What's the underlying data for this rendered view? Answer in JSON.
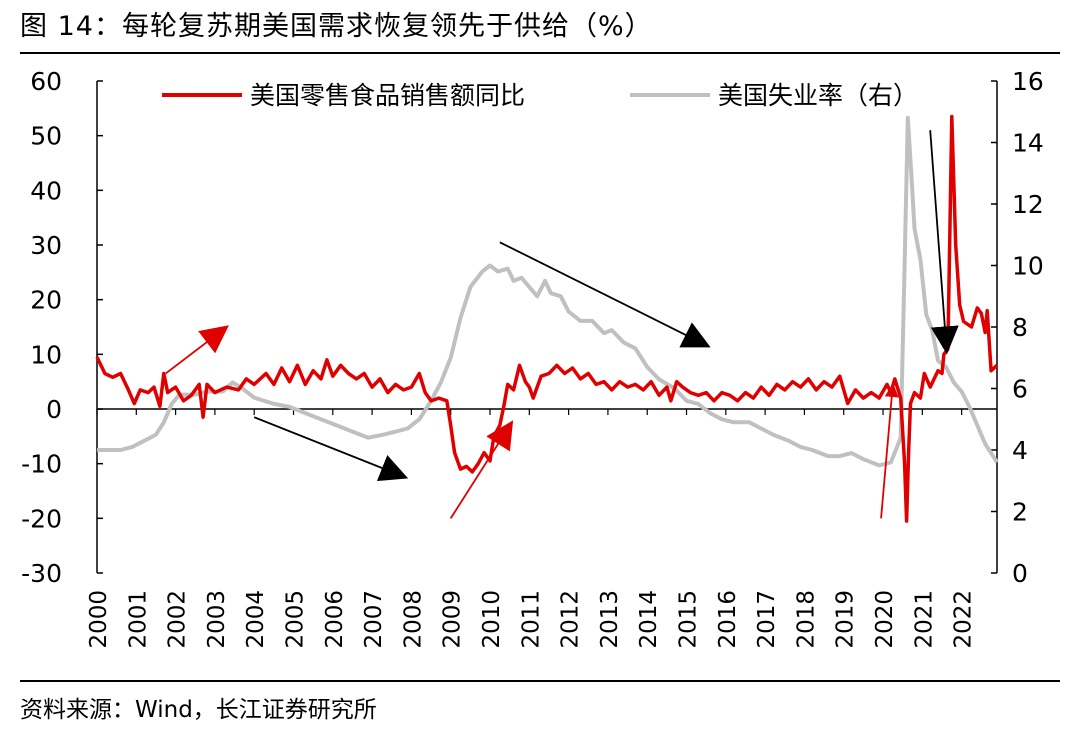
{
  "figure": {
    "title": "图 14：每轮复苏期美国需求恢复领先于供给（%）",
    "source": "资料来源：Wind，长江证券研究所"
  },
  "colors": {
    "retail": "#e00000",
    "unemployment": "#c0c0c0",
    "arrow_black": "#000000",
    "arrow_red": "#e00000"
  },
  "chart_data": {
    "type": "line",
    "title": "每轮复苏期美国需求恢复领先于供给（%）",
    "xlabel": "",
    "ylabel": "",
    "ylabel_right": "",
    "x_ticks": [
      "2000",
      "2001",
      "2002",
      "2003",
      "2004",
      "2005",
      "2006",
      "2007",
      "2008",
      "2009",
      "2010",
      "2011",
      "2012",
      "2013",
      "2014",
      "2015",
      "2016",
      "2017",
      "2018",
      "2019",
      "2020",
      "2021",
      "2022"
    ],
    "y_left": {
      "ticks": [
        "60",
        "50",
        "40",
        "30",
        "20",
        "10",
        "0",
        "-10",
        "-20",
        "-30"
      ],
      "min": -30,
      "max": 60
    },
    "y_right": {
      "ticks": [
        "16",
        "14",
        "12",
        "10",
        "8",
        "6",
        "4",
        "2",
        "0"
      ],
      "min": 0,
      "max": 16
    },
    "legend": [
      "美国零售食品销售额同比",
      "美国失业率（右）"
    ],
    "series": [
      {
        "name": "美国零售食品销售额同比",
        "axis": "left",
        "points": [
          [
            2000.0,
            9.5
          ],
          [
            2000.2,
            6.5
          ],
          [
            2000.4,
            5.8
          ],
          [
            2000.6,
            6.5
          ],
          [
            2000.8,
            3.5
          ],
          [
            2000.95,
            1.0
          ],
          [
            2001.1,
            3.5
          ],
          [
            2001.3,
            3.0
          ],
          [
            2001.45,
            4.0
          ],
          [
            2001.6,
            0.5
          ],
          [
            2001.7,
            6.5
          ],
          [
            2001.8,
            3.0
          ],
          [
            2002.0,
            4.0
          ],
          [
            2002.2,
            1.5
          ],
          [
            2002.4,
            2.5
          ],
          [
            2002.6,
            4.5
          ],
          [
            2002.7,
            -1.5
          ],
          [
            2002.8,
            4.5
          ],
          [
            2003.0,
            3.0
          ],
          [
            2003.3,
            4.0
          ],
          [
            2003.6,
            3.5
          ],
          [
            2003.8,
            5.5
          ],
          [
            2004.0,
            4.5
          ],
          [
            2004.3,
            6.5
          ],
          [
            2004.5,
            4.5
          ],
          [
            2004.7,
            7.5
          ],
          [
            2004.9,
            5.0
          ],
          [
            2005.1,
            8.0
          ],
          [
            2005.3,
            4.5
          ],
          [
            2005.5,
            7.0
          ],
          [
            2005.7,
            5.5
          ],
          [
            2005.85,
            9.0
          ],
          [
            2006.0,
            6.0
          ],
          [
            2006.2,
            8.0
          ],
          [
            2006.4,
            6.5
          ],
          [
            2006.6,
            5.5
          ],
          [
            2006.8,
            6.5
          ],
          [
            2007.0,
            4.0
          ],
          [
            2007.2,
            5.5
          ],
          [
            2007.4,
            3.0
          ],
          [
            2007.6,
            4.5
          ],
          [
            2007.8,
            3.5
          ],
          [
            2008.0,
            4.0
          ],
          [
            2008.2,
            6.5
          ],
          [
            2008.35,
            3.0
          ],
          [
            2008.5,
            1.5
          ],
          [
            2008.7,
            2.0
          ],
          [
            2008.9,
            1.5
          ],
          [
            2009.0,
            -3.0
          ],
          [
            2009.1,
            -8.0
          ],
          [
            2009.25,
            -11.0
          ],
          [
            2009.4,
            -10.5
          ],
          [
            2009.55,
            -11.5
          ],
          [
            2009.7,
            -10.0
          ],
          [
            2009.85,
            -8.0
          ],
          [
            2010.0,
            -9.5
          ],
          [
            2010.1,
            -5.0
          ],
          [
            2010.25,
            -3.0
          ],
          [
            2010.35,
            0.5
          ],
          [
            2010.45,
            4.5
          ],
          [
            2010.6,
            3.5
          ],
          [
            2010.75,
            8.0
          ],
          [
            2010.9,
            5.0
          ],
          [
            2011.0,
            4.0
          ],
          [
            2011.1,
            2.0
          ],
          [
            2011.3,
            6.0
          ],
          [
            2011.5,
            6.5
          ],
          [
            2011.7,
            8.0
          ],
          [
            2011.9,
            6.5
          ],
          [
            2012.1,
            7.5
          ],
          [
            2012.3,
            5.5
          ],
          [
            2012.5,
            6.5
          ],
          [
            2012.7,
            4.5
          ],
          [
            2012.9,
            5.0
          ],
          [
            2013.1,
            3.5
          ],
          [
            2013.3,
            5.0
          ],
          [
            2013.5,
            4.0
          ],
          [
            2013.7,
            4.5
          ],
          [
            2013.9,
            3.5
          ],
          [
            2014.1,
            5.0
          ],
          [
            2014.3,
            2.5
          ],
          [
            2014.5,
            4.0
          ],
          [
            2014.6,
            1.5
          ],
          [
            2014.75,
            5.0
          ],
          [
            2014.9,
            4.0
          ],
          [
            2015.1,
            3.0
          ],
          [
            2015.3,
            2.5
          ],
          [
            2015.5,
            3.0
          ],
          [
            2015.7,
            1.5
          ],
          [
            2015.9,
            3.0
          ],
          [
            2016.1,
            2.5
          ],
          [
            2016.3,
            1.5
          ],
          [
            2016.5,
            3.0
          ],
          [
            2016.7,
            2.0
          ],
          [
            2016.9,
            4.0
          ],
          [
            2017.1,
            2.5
          ],
          [
            2017.3,
            4.5
          ],
          [
            2017.5,
            3.5
          ],
          [
            2017.7,
            5.0
          ],
          [
            2017.9,
            4.0
          ],
          [
            2018.1,
            5.5
          ],
          [
            2018.3,
            3.5
          ],
          [
            2018.5,
            5.0
          ],
          [
            2018.7,
            4.0
          ],
          [
            2018.9,
            6.0
          ],
          [
            2019.1,
            1.0
          ],
          [
            2019.3,
            3.5
          ],
          [
            2019.5,
            2.0
          ],
          [
            2019.7,
            3.0
          ],
          [
            2019.9,
            2.0
          ],
          [
            2020.1,
            4.5
          ],
          [
            2020.2,
            3.0
          ],
          [
            2020.3,
            5.5
          ],
          [
            2020.45,
            2.0
          ],
          [
            2020.55,
            -10.0
          ],
          [
            2020.6,
            -20.5
          ],
          [
            2020.65,
            -8.0
          ],
          [
            2020.7,
            1.0
          ],
          [
            2020.8,
            3.0
          ],
          [
            2020.95,
            2.0
          ],
          [
            2021.05,
            6.5
          ],
          [
            2021.2,
            4.0
          ],
          [
            2021.4,
            7.0
          ],
          [
            2021.5,
            6.5
          ],
          [
            2021.55,
            10.0
          ],
          [
            2021.65,
            11.0
          ],
          [
            2021.75,
            53.5
          ],
          [
            2021.85,
            30.0
          ],
          [
            2021.95,
            19.0
          ],
          [
            2022.05,
            16.0
          ],
          [
            2022.25,
            15.0
          ],
          [
            2022.4,
            18.5
          ],
          [
            2022.5,
            17.5
          ],
          [
            2022.6,
            14.0
          ],
          [
            2022.65,
            18.0
          ],
          [
            2022.75,
            7.0
          ],
          [
            2022.9,
            8.0
          ]
        ]
      },
      {
        "name": "美国失业率（右）",
        "axis": "right",
        "points": [
          [
            2000.0,
            4.0
          ],
          [
            2000.3,
            4.0
          ],
          [
            2000.6,
            4.0
          ],
          [
            2000.9,
            4.1
          ],
          [
            2001.2,
            4.3
          ],
          [
            2001.5,
            4.5
          ],
          [
            2001.7,
            4.9
          ],
          [
            2001.9,
            5.5
          ],
          [
            2002.1,
            5.8
          ],
          [
            2002.5,
            5.8
          ],
          [
            2002.8,
            5.9
          ],
          [
            2003.2,
            5.9
          ],
          [
            2003.45,
            6.2
          ],
          [
            2003.7,
            6.0
          ],
          [
            2004.0,
            5.7
          ],
          [
            2004.5,
            5.5
          ],
          [
            2004.9,
            5.4
          ],
          [
            2005.3,
            5.2
          ],
          [
            2005.7,
            5.0
          ],
          [
            2006.1,
            4.8
          ],
          [
            2006.5,
            4.6
          ],
          [
            2006.9,
            4.4
          ],
          [
            2007.3,
            4.5
          ],
          [
            2007.6,
            4.6
          ],
          [
            2007.9,
            4.7
          ],
          [
            2008.2,
            5.0
          ],
          [
            2008.5,
            5.6
          ],
          [
            2008.75,
            6.2
          ],
          [
            2009.0,
            7.0
          ],
          [
            2009.25,
            8.3
          ],
          [
            2009.5,
            9.3
          ],
          [
            2009.8,
            9.8
          ],
          [
            2010.0,
            10.0
          ],
          [
            2010.2,
            9.8
          ],
          [
            2010.45,
            9.9
          ],
          [
            2010.6,
            9.5
          ],
          [
            2010.8,
            9.6
          ],
          [
            2011.0,
            9.3
          ],
          [
            2011.2,
            9.0
          ],
          [
            2011.4,
            9.5
          ],
          [
            2011.55,
            9.1
          ],
          [
            2011.8,
            9.0
          ],
          [
            2012.0,
            8.5
          ],
          [
            2012.3,
            8.2
          ],
          [
            2012.6,
            8.2
          ],
          [
            2012.9,
            7.8
          ],
          [
            2013.1,
            7.9
          ],
          [
            2013.4,
            7.5
          ],
          [
            2013.7,
            7.3
          ],
          [
            2014.0,
            6.7
          ],
          [
            2014.3,
            6.3
          ],
          [
            2014.7,
            6.0
          ],
          [
            2015.0,
            5.6
          ],
          [
            2015.3,
            5.5
          ],
          [
            2015.6,
            5.2
          ],
          [
            2015.9,
            5.0
          ],
          [
            2016.2,
            4.9
          ],
          [
            2016.6,
            4.9
          ],
          [
            2016.9,
            4.7
          ],
          [
            2017.2,
            4.5
          ],
          [
            2017.6,
            4.3
          ],
          [
            2017.9,
            4.1
          ],
          [
            2018.2,
            4.0
          ],
          [
            2018.6,
            3.8
          ],
          [
            2018.9,
            3.8
          ],
          [
            2019.2,
            3.9
          ],
          [
            2019.5,
            3.7
          ],
          [
            2019.9,
            3.5
          ],
          [
            2020.2,
            3.6
          ],
          [
            2020.45,
            4.4
          ],
          [
            2020.55,
            10.0
          ],
          [
            2020.63,
            14.8
          ],
          [
            2020.72,
            13.0
          ],
          [
            2020.8,
            11.2
          ],
          [
            2020.95,
            10.2
          ],
          [
            2021.1,
            8.4
          ],
          [
            2021.25,
            7.9
          ],
          [
            2021.4,
            6.9
          ],
          [
            2021.6,
            6.7
          ],
          [
            2021.8,
            6.2
          ],
          [
            2022.0,
            5.9
          ],
          [
            2022.2,
            5.4
          ],
          [
            2022.4,
            4.8
          ],
          [
            2022.6,
            4.2
          ],
          [
            2022.75,
            3.9
          ],
          [
            2022.9,
            3.6
          ]
        ]
      }
    ],
    "annotations": [
      {
        "kind": "arrow",
        "color": "red",
        "from": [
          2001.75,
          6.5
        ],
        "to": [
          2003.3,
          15
        ]
      },
      {
        "kind": "arrow",
        "color": "black",
        "from": [
          2004.0,
          -1.5
        ],
        "to": [
          2007.85,
          -12.5
        ]
      },
      {
        "kind": "arrow",
        "color": "red",
        "from": [
          2009.0,
          -20
        ],
        "to": [
          2010.55,
          -2.5
        ]
      },
      {
        "kind": "arrow",
        "color": "black",
        "from": [
          2010.25,
          30.5
        ],
        "to": [
          2015.55,
          11.5
        ]
      },
      {
        "kind": "arrow",
        "color": "red",
        "from": [
          2019.95,
          -20
        ],
        "to": [
          2020.25,
          4.5
        ]
      },
      {
        "kind": "arrow",
        "color": "black",
        "from": [
          2021.2,
          51
        ],
        "to": [
          2021.62,
          10.5
        ]
      }
    ]
  }
}
